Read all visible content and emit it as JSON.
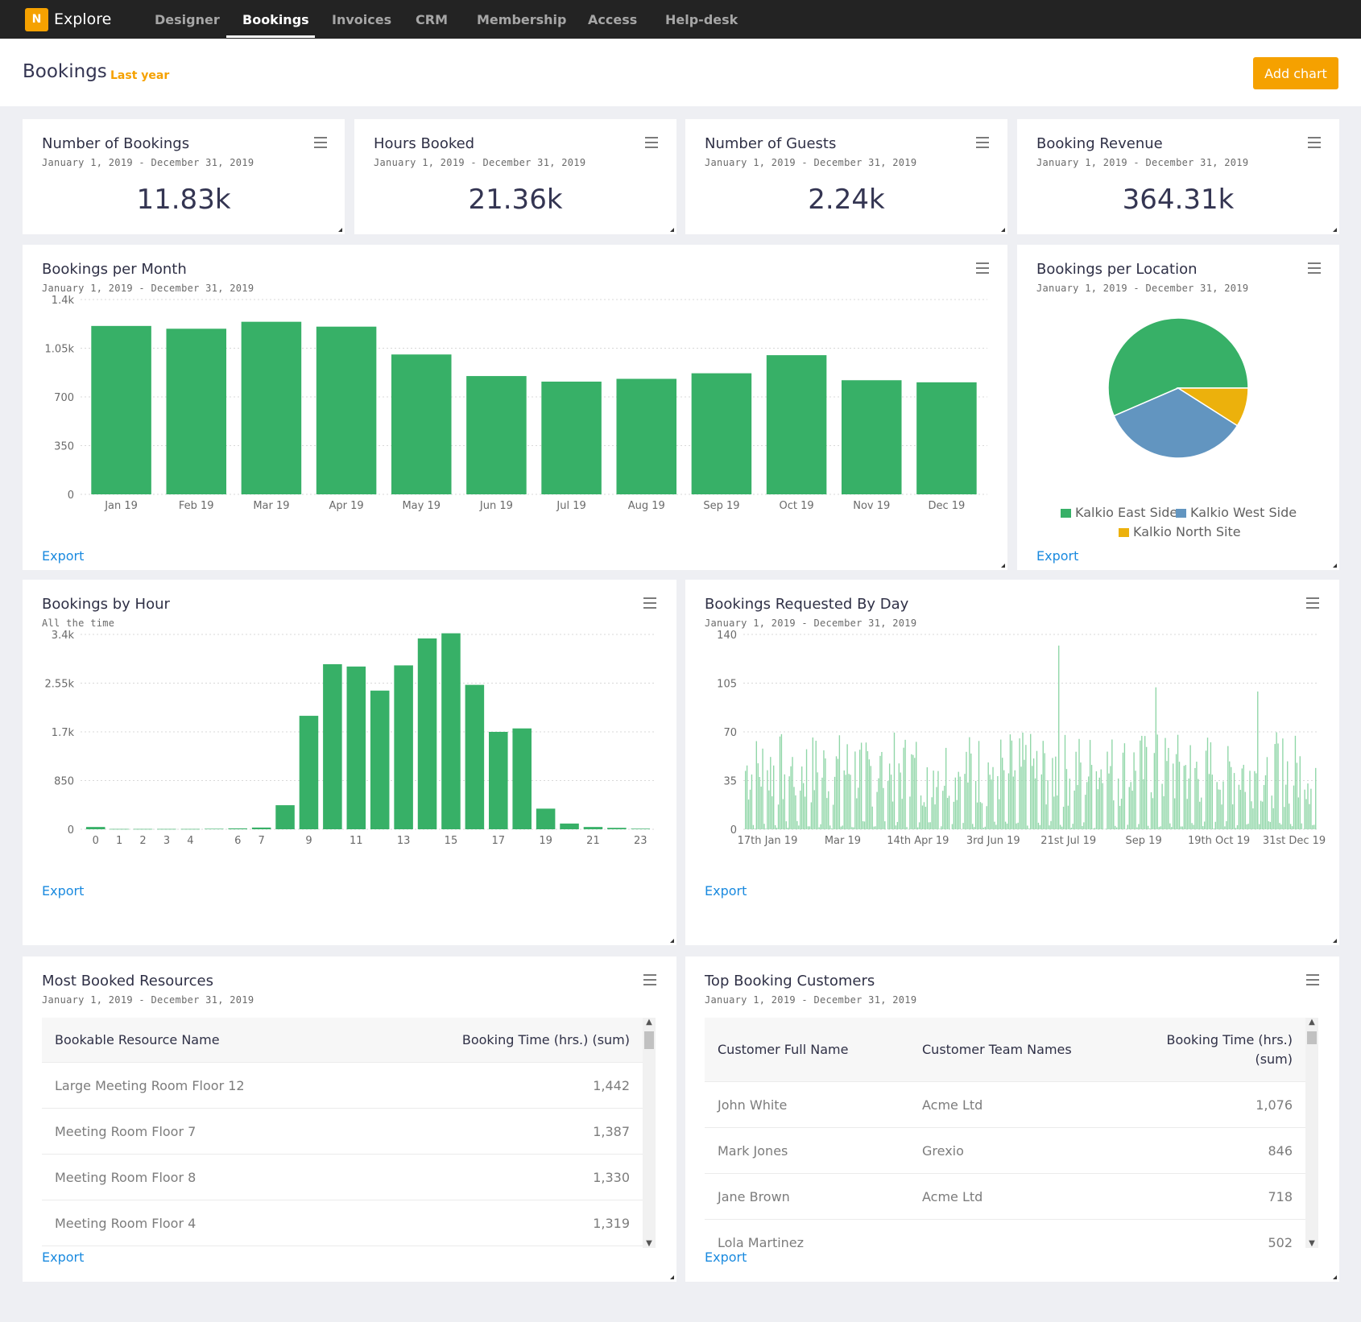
{
  "nav": {
    "logo_letter": "N",
    "app_name": "Explore",
    "tabs": [
      "Designer",
      "Bookings",
      "Invoices",
      "CRM",
      "Membership",
      "Access",
      "Help-desk"
    ],
    "active_tab": "Bookings"
  },
  "header": {
    "title": "Bookings",
    "subtitle": "Last year",
    "add_chart_label": "Add chart"
  },
  "colors": {
    "accent": "#f5a100",
    "bar_green": "#37b067",
    "light_green": "#8fd6a7",
    "blue": "#6295c0",
    "yellow": "#ecb10c",
    "link": "#1a8adf"
  },
  "kpis": [
    {
      "title": "Number of Bookings",
      "date": "January 1, 2019 - December 31, 2019",
      "value": "11.83k"
    },
    {
      "title": "Hours Booked",
      "date": "January 1, 2019 - December 31, 2019",
      "value": "21.36k"
    },
    {
      "title": "Number of Guests",
      "date": "January 1, 2019 - December 31, 2019",
      "value": "2.24k"
    },
    {
      "title": "Booking Revenue",
      "date": "January 1, 2019 - December 31, 2019",
      "value": "364.31k"
    }
  ],
  "export_label": "Export",
  "per_month": {
    "title": "Bookings per Month",
    "date": "January 1, 2019 - December 31, 2019"
  },
  "per_location": {
    "title": "Bookings per Location",
    "date": "January 1, 2019 - December 31, 2019"
  },
  "by_hour": {
    "title": "Bookings by Hour",
    "date": "All the time"
  },
  "by_day": {
    "title": "Bookings Requested By Day",
    "date": "January 1, 2019 - December 31, 2019"
  },
  "chart_data": [
    {
      "type": "bar",
      "categories": [
        "Jan 19",
        "Feb 19",
        "Mar 19",
        "Apr 19",
        "May 19",
        "Jun 19",
        "Jul 19",
        "Aug 19",
        "Sep 19",
        "Oct 19",
        "Nov 19",
        "Dec 19"
      ],
      "values": [
        1210,
        1190,
        1240,
        1205,
        1005,
        850,
        810,
        830,
        870,
        1000,
        820,
        805
      ],
      "yticks": [
        "0",
        "350",
        "700",
        "1.05k",
        "1.4k"
      ],
      "ylim": [
        0,
        1400
      ]
    },
    {
      "type": "pie",
      "labels": [
        "Kalkio East Side",
        "Kalkio West Side",
        "Kalkio North Site"
      ],
      "values": [
        56.5,
        34.5,
        9
      ],
      "colors": [
        "#37b067",
        "#6295c0",
        "#ecb10c"
      ]
    },
    {
      "type": "bar",
      "categories": [
        "0",
        "1",
        "2",
        "3",
        "4",
        "5",
        "6",
        "7",
        "8",
        "9",
        "10",
        "11",
        "12",
        "13",
        "14",
        "15",
        "16",
        "17",
        "18",
        "19",
        "20",
        "21",
        "22",
        "23"
      ],
      "tick_labels": [
        "0",
        "1",
        "2",
        "3",
        "4",
        "",
        "6",
        "7",
        "",
        "9",
        "",
        "11",
        "",
        "13",
        "",
        "15",
        "",
        "17",
        "",
        "19",
        "",
        "21",
        "",
        "23"
      ],
      "values": [
        40,
        5,
        5,
        5,
        5,
        8,
        15,
        30,
        420,
        1980,
        2880,
        2840,
        2420,
        2860,
        3330,
        3420,
        2520,
        1700,
        1760,
        360,
        100,
        40,
        25,
        10
      ],
      "yticks": [
        "0",
        "850",
        "1.7k",
        "2.55k",
        "3.4k"
      ],
      "ylim": [
        0,
        3400
      ]
    },
    {
      "type": "bar",
      "x_tick_labels": [
        "17th Jan 19",
        "Mar 19",
        "14th Apr 19",
        "3rd Jun 19",
        "21st Jul 19",
        "Sep 19",
        "19th Oct 19",
        "31st Dec 19"
      ],
      "yticks": [
        "0",
        "35",
        "70",
        "105",
        "140"
      ],
      "ylim": [
        0,
        140
      ],
      "days": 365,
      "notable_peaks": {
        "Jul": 132,
        "Sep": 102,
        "Nov": 99
      }
    }
  ],
  "resources_table": {
    "title": "Most Booked Resources",
    "date": "January 1, 2019 - December 31, 2019",
    "columns": [
      "Bookable Resource Name",
      "Booking Time (hrs.) (sum)"
    ],
    "rows": [
      [
        "Large Meeting Room Floor 12",
        "1,442"
      ],
      [
        "Meeting Room Floor 7",
        "1,387"
      ],
      [
        "Meeting Room Floor 8",
        "1,330"
      ],
      [
        "Meeting Room Floor 4",
        "1,319"
      ]
    ]
  },
  "customers_table": {
    "title": "Top Booking Customers",
    "date": "January 1, 2019 - December 31, 2019",
    "columns": [
      "Customer Full Name",
      "Customer Team Names",
      "Booking Time (hrs.)",
      "(sum)"
    ],
    "rows": [
      [
        "John White",
        "Acme Ltd",
        "1,076"
      ],
      [
        "Mark Jones",
        "Grexio",
        "846"
      ],
      [
        "Jane Brown",
        "Acme Ltd",
        "718"
      ],
      [
        "Lola Martinez",
        "",
        "502"
      ]
    ]
  }
}
